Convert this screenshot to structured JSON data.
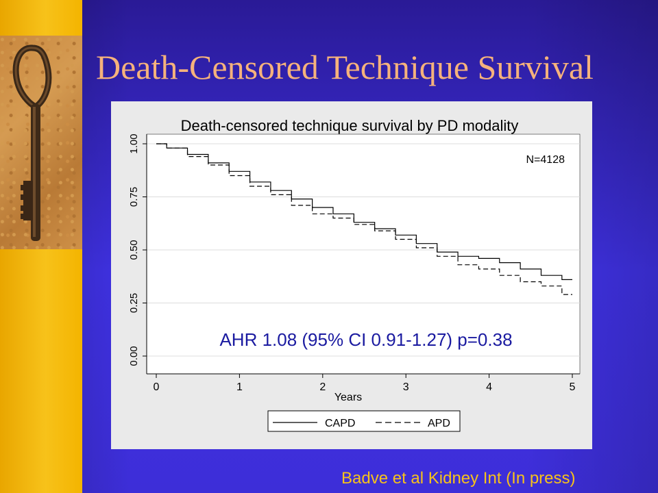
{
  "slide": {
    "title": "Death-Censored Technique Survival",
    "citation": "Badve et al Kidney Int (In press)"
  },
  "colors": {
    "background": "#3a2ccb",
    "left_strip": "#f4b400",
    "title": "#f5b27c",
    "citation": "#f7c21a",
    "panel": "#eaeaea"
  },
  "chart_data": {
    "type": "line",
    "title": "Death-censored technique survival by PD modality",
    "xlabel": "Years",
    "ylabel": "",
    "xlim": [
      0,
      5
    ],
    "ylim": [
      0,
      1
    ],
    "x_ticks": [
      "0",
      "1",
      "2",
      "3",
      "4",
      "5"
    ],
    "y_ticks": [
      "0.00",
      "0.25",
      "0.50",
      "0.75",
      "1.00"
    ],
    "grid": "horizontal",
    "legend_position": "bottom",
    "annotations": {
      "n_label": "N=4128",
      "ahr_label": "AHR 1.08 (95% CI 0.91-1.27) p=0.38"
    },
    "series": [
      {
        "name": "CAPD",
        "style": "solid",
        "x": [
          0,
          0.25,
          0.5,
          0.75,
          1.0,
          1.25,
          1.5,
          1.75,
          2.0,
          2.25,
          2.5,
          2.75,
          3.0,
          3.25,
          3.5,
          3.75,
          4.0,
          4.25,
          4.5,
          4.75,
          5.0
        ],
        "y": [
          1.0,
          0.98,
          0.95,
          0.91,
          0.87,
          0.82,
          0.78,
          0.74,
          0.7,
          0.67,
          0.63,
          0.6,
          0.57,
          0.53,
          0.49,
          0.47,
          0.46,
          0.44,
          0.41,
          0.38,
          0.36
        ]
      },
      {
        "name": "APD",
        "style": "dashed",
        "x": [
          0,
          0.25,
          0.5,
          0.75,
          1.0,
          1.25,
          1.5,
          1.75,
          2.0,
          2.25,
          2.5,
          2.75,
          3.0,
          3.25,
          3.5,
          3.75,
          4.0,
          4.25,
          4.5,
          4.75,
          5.0
        ],
        "y": [
          1.0,
          0.98,
          0.94,
          0.9,
          0.85,
          0.8,
          0.76,
          0.71,
          0.67,
          0.65,
          0.62,
          0.59,
          0.55,
          0.51,
          0.47,
          0.43,
          0.41,
          0.38,
          0.35,
          0.33,
          0.29
        ]
      }
    ]
  }
}
